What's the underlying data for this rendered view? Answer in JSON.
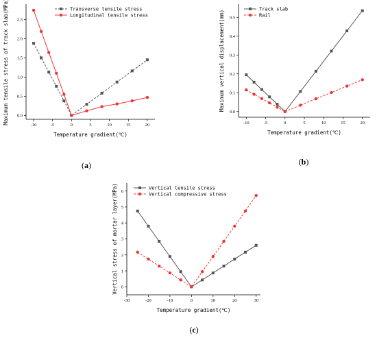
{
  "chart_data": [
    {
      "type": "line",
      "panel_label": "(a)",
      "xlabel": "Temperature gradient(℃)",
      "ylabel": "Maximum tensile stress of track slab(MPa)",
      "xlim": [
        -12,
        22
      ],
      "ylim": [
        -0.1,
        2.9
      ],
      "xticks": [
        -10,
        -5,
        0,
        5,
        10,
        15,
        20
      ],
      "yticks": [
        0.0,
        0.5,
        1.0,
        1.5,
        2.0,
        2.5
      ],
      "legend_position": "top-right",
      "series": [
        {
          "name": "Transverse tensile stress",
          "color": "#555555",
          "marker": "square",
          "dash": true,
          "x": [
            -10,
            -8,
            -6,
            -4,
            -2,
            0,
            4,
            8,
            12,
            16,
            20
          ],
          "y": [
            1.88,
            1.5,
            1.13,
            0.76,
            0.38,
            0.0,
            0.29,
            0.58,
            0.87,
            1.16,
            1.45
          ]
        },
        {
          "name": "Longitudinal tensile stress",
          "color": "#f03434",
          "marker": "circle",
          "dash": false,
          "x": [
            -10,
            -8,
            -6,
            -4,
            -2,
            0,
            4,
            8,
            12,
            16,
            20
          ],
          "y": [
            2.74,
            2.19,
            1.64,
            1.1,
            0.55,
            0.0,
            0.12,
            0.23,
            0.3,
            0.38,
            0.47
          ]
        }
      ]
    },
    {
      "type": "line",
      "panel_label": "(b)",
      "xlabel": "Temperature gradient(℃)",
      "ylabel": "Maximum vertical displacement(mm)",
      "xlim": [
        -12,
        22
      ],
      "ylim": [
        -0.03,
        0.57
      ],
      "xticks": [
        -10,
        -5,
        0,
        5,
        10,
        15,
        20
      ],
      "yticks": [
        0.0,
        0.1,
        0.2,
        0.3,
        0.4,
        0.5
      ],
      "legend_position": "top-left",
      "series": [
        {
          "name": "Track slab",
          "color": "#555555",
          "marker": "square",
          "dash": false,
          "x": [
            -10,
            -8,
            -6,
            -4,
            -2,
            0,
            4,
            8,
            12,
            16,
            20
          ],
          "y": [
            0.195,
            0.156,
            0.117,
            0.078,
            0.039,
            0.0,
            0.107,
            0.214,
            0.321,
            0.428,
            0.535
          ]
        },
        {
          "name": "Rail",
          "color": "#f03434",
          "marker": "circle",
          "dash": true,
          "x": [
            -10,
            -8,
            -6,
            -4,
            -2,
            0,
            4,
            8,
            12,
            16,
            20
          ],
          "y": [
            0.115,
            0.092,
            0.069,
            0.046,
            0.023,
            0.0,
            0.034,
            0.068,
            0.101,
            0.135,
            0.169
          ]
        }
      ]
    },
    {
      "type": "line",
      "panel_label": "(c)",
      "xlabel": "Temperature gradient(℃)",
      "ylabel": "Vertical stress of mortar layer(MPa)",
      "xlim": [
        -30,
        32
      ],
      "ylim": [
        -0.5,
        6.5
      ],
      "xticks": [
        -30,
        -20,
        -10,
        0,
        10,
        20,
        30
      ],
      "yticks": [
        0,
        1,
        2,
        3,
        4,
        5,
        6
      ],
      "legend_position": "top-left",
      "series": [
        {
          "name": "Vertical tensile stress",
          "color": "#555555",
          "marker": "square",
          "dash": false,
          "x": [
            -25,
            -20,
            -15,
            -10,
            -5,
            0,
            5,
            10,
            15,
            20,
            25,
            30
          ],
          "y": [
            4.75,
            3.8,
            2.85,
            1.9,
            0.95,
            0.0,
            0.43,
            0.87,
            1.3,
            1.74,
            2.17,
            2.6
          ]
        },
        {
          "name": "Vertical compressive stress",
          "color": "#f03434",
          "marker": "circle",
          "dash": true,
          "x": [
            -25,
            -20,
            -15,
            -10,
            -5,
            0,
            5,
            10,
            15,
            20,
            25,
            30
          ],
          "y": [
            2.17,
            1.74,
            1.3,
            0.87,
            0.43,
            0.0,
            0.95,
            1.9,
            2.85,
            3.8,
            4.75,
            5.72
          ]
        }
      ]
    }
  ]
}
